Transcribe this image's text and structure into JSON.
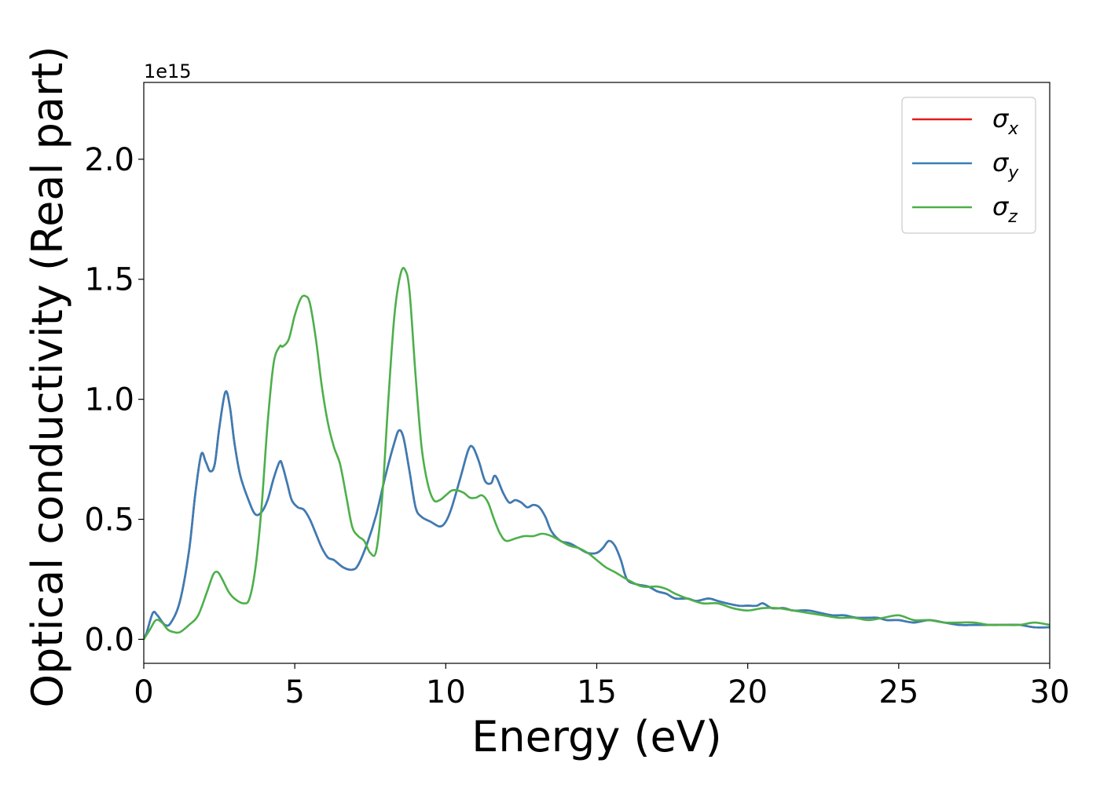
{
  "chart_data": {
    "type": "line",
    "xlabel": "Energy (eV)",
    "ylabel": "Optical conductivity (Real part)",
    "y_offset_text": "1e15",
    "y_multiplier": 1000000000000000.0,
    "xlim": [
      0,
      30
    ],
    "ylim": [
      -0.1,
      2.32
    ],
    "xticks": [
      0,
      5,
      10,
      15,
      20,
      25,
      30
    ],
    "xtick_labels": [
      "0",
      "5",
      "10",
      "15",
      "20",
      "25",
      "30"
    ],
    "yticks": [
      0.0,
      0.5,
      1.0,
      1.5,
      2.0
    ],
    "ytick_labels": [
      "0.0",
      "0.5",
      "1.0",
      "1.5",
      "2.0"
    ],
    "grid": false,
    "legend_position": "top-right",
    "legend": [
      {
        "symbol": "σ",
        "subscript": "x",
        "color": "#e41a1c"
      },
      {
        "symbol": "σ",
        "subscript": "y",
        "color": "#377eb8"
      },
      {
        "symbol": "σ",
        "subscript": "z",
        "color": "#4daf4a"
      }
    ],
    "series": [
      {
        "color": "#e41a1c",
        "x": [
          0,
          0.1,
          0.3,
          0.45,
          0.7,
          0.9,
          1.2,
          1.5,
          1.7,
          1.9,
          2.05,
          2.2,
          2.35,
          2.5,
          2.7,
          2.85,
          3.0,
          3.2,
          3.5,
          3.7,
          3.9,
          4.1,
          4.3,
          4.5,
          4.6,
          4.75,
          4.9,
          5.1,
          5.3,
          5.5,
          5.7,
          5.9,
          6.1,
          6.3,
          6.6,
          6.9,
          7.1,
          7.4,
          7.7,
          8.0,
          8.3,
          8.45,
          8.6,
          8.8,
          9.0,
          9.2,
          9.5,
          9.8,
          10.0,
          10.2,
          10.5,
          10.75,
          10.9,
          11.1,
          11.3,
          11.5,
          11.6,
          11.7,
          11.9,
          12.1,
          12.3,
          12.5,
          12.7,
          12.9,
          13.1,
          13.3,
          13.5,
          13.8,
          14.1,
          14.4,
          14.7,
          15.0,
          15.2,
          15.4,
          15.6,
          15.8,
          16.0,
          16.3,
          16.7,
          17.0,
          17.3,
          17.6,
          18.0,
          18.3,
          18.7,
          19.0,
          19.3,
          19.7,
          20.0,
          20.3,
          20.5,
          20.8,
          21.2,
          21.5,
          22.0,
          22.4,
          22.8,
          23.2,
          23.6,
          24.0,
          24.3,
          24.6,
          25.0,
          25.5,
          26.0,
          26.5,
          27.0,
          27.5,
          28.0,
          28.5,
          29.0,
          29.5,
          30.0
        ],
        "y": [
          0.0,
          0.03,
          0.11,
          0.1,
          0.06,
          0.07,
          0.16,
          0.37,
          0.6,
          0.77,
          0.74,
          0.7,
          0.73,
          0.88,
          1.03,
          0.97,
          0.82,
          0.68,
          0.57,
          0.52,
          0.53,
          0.58,
          0.67,
          0.74,
          0.72,
          0.65,
          0.58,
          0.55,
          0.54,
          0.5,
          0.44,
          0.38,
          0.34,
          0.33,
          0.3,
          0.29,
          0.31,
          0.4,
          0.52,
          0.68,
          0.82,
          0.87,
          0.84,
          0.7,
          0.55,
          0.51,
          0.49,
          0.47,
          0.49,
          0.55,
          0.68,
          0.79,
          0.8,
          0.74,
          0.66,
          0.65,
          0.68,
          0.67,
          0.61,
          0.57,
          0.58,
          0.57,
          0.55,
          0.56,
          0.55,
          0.51,
          0.45,
          0.41,
          0.4,
          0.38,
          0.36,
          0.36,
          0.38,
          0.41,
          0.39,
          0.33,
          0.25,
          0.23,
          0.22,
          0.2,
          0.19,
          0.17,
          0.17,
          0.16,
          0.17,
          0.16,
          0.15,
          0.14,
          0.14,
          0.14,
          0.15,
          0.13,
          0.13,
          0.12,
          0.12,
          0.11,
          0.1,
          0.1,
          0.09,
          0.09,
          0.09,
          0.08,
          0.08,
          0.07,
          0.08,
          0.07,
          0.06,
          0.06,
          0.06,
          0.06,
          0.06,
          0.05,
          0.05
        ]
      },
      {
        "color": "#377eb8",
        "x": [
          0,
          0.1,
          0.3,
          0.45,
          0.7,
          0.9,
          1.2,
          1.5,
          1.7,
          1.9,
          2.05,
          2.2,
          2.35,
          2.5,
          2.7,
          2.85,
          3.0,
          3.2,
          3.5,
          3.7,
          3.9,
          4.1,
          4.3,
          4.5,
          4.6,
          4.75,
          4.9,
          5.1,
          5.3,
          5.5,
          5.7,
          5.9,
          6.1,
          6.3,
          6.6,
          6.9,
          7.1,
          7.4,
          7.7,
          8.0,
          8.3,
          8.45,
          8.6,
          8.8,
          9.0,
          9.2,
          9.5,
          9.8,
          10.0,
          10.2,
          10.5,
          10.75,
          10.9,
          11.1,
          11.3,
          11.5,
          11.6,
          11.7,
          11.9,
          12.1,
          12.3,
          12.5,
          12.7,
          12.9,
          13.1,
          13.3,
          13.5,
          13.8,
          14.1,
          14.4,
          14.7,
          15.0,
          15.2,
          15.4,
          15.6,
          15.8,
          16.0,
          16.3,
          16.7,
          17.0,
          17.3,
          17.6,
          18.0,
          18.3,
          18.7,
          19.0,
          19.3,
          19.7,
          20.0,
          20.3,
          20.5,
          20.8,
          21.2,
          21.5,
          22.0,
          22.4,
          22.8,
          23.2,
          23.6,
          24.0,
          24.3,
          24.6,
          25.0,
          25.5,
          26.0,
          26.5,
          27.0,
          27.5,
          28.0,
          28.5,
          29.0,
          29.5,
          30.0
        ],
        "y": [
          0.0,
          0.03,
          0.11,
          0.1,
          0.06,
          0.07,
          0.16,
          0.37,
          0.6,
          0.77,
          0.74,
          0.7,
          0.73,
          0.88,
          1.03,
          0.97,
          0.82,
          0.68,
          0.57,
          0.52,
          0.53,
          0.58,
          0.67,
          0.74,
          0.72,
          0.65,
          0.58,
          0.55,
          0.54,
          0.5,
          0.44,
          0.38,
          0.34,
          0.33,
          0.3,
          0.29,
          0.31,
          0.4,
          0.52,
          0.68,
          0.82,
          0.87,
          0.84,
          0.7,
          0.55,
          0.51,
          0.49,
          0.47,
          0.49,
          0.55,
          0.68,
          0.79,
          0.8,
          0.74,
          0.66,
          0.65,
          0.68,
          0.67,
          0.61,
          0.57,
          0.58,
          0.57,
          0.55,
          0.56,
          0.55,
          0.51,
          0.45,
          0.41,
          0.4,
          0.38,
          0.36,
          0.36,
          0.38,
          0.41,
          0.39,
          0.33,
          0.25,
          0.23,
          0.22,
          0.2,
          0.19,
          0.17,
          0.17,
          0.16,
          0.17,
          0.16,
          0.15,
          0.14,
          0.14,
          0.14,
          0.15,
          0.13,
          0.13,
          0.12,
          0.12,
          0.11,
          0.1,
          0.1,
          0.09,
          0.09,
          0.09,
          0.08,
          0.08,
          0.07,
          0.08,
          0.07,
          0.06,
          0.06,
          0.06,
          0.06,
          0.06,
          0.05,
          0.05
        ]
      },
      {
        "color": "#4daf4a",
        "x": [
          0,
          0.2,
          0.4,
          0.6,
          0.8,
          1.0,
          1.2,
          1.5,
          1.8,
          2.1,
          2.3,
          2.45,
          2.6,
          2.8,
          3.0,
          3.3,
          3.5,
          3.7,
          3.9,
          4.1,
          4.3,
          4.5,
          4.6,
          4.8,
          5.0,
          5.2,
          5.35,
          5.5,
          5.7,
          5.9,
          6.1,
          6.3,
          6.5,
          6.7,
          6.9,
          7.1,
          7.3,
          7.5,
          7.7,
          7.9,
          8.1,
          8.3,
          8.5,
          8.65,
          8.8,
          9.0,
          9.2,
          9.4,
          9.6,
          9.8,
          10.0,
          10.2,
          10.4,
          10.6,
          10.8,
          11.0,
          11.2,
          11.4,
          11.6,
          11.8,
          12.0,
          12.3,
          12.6,
          12.9,
          13.2,
          13.5,
          13.8,
          14.1,
          14.4,
          14.7,
          15.0,
          15.3,
          15.6,
          16.0,
          16.5,
          17.0,
          17.3,
          17.6,
          18.0,
          18.5,
          19.0,
          19.5,
          20.0,
          20.5,
          21.0,
          21.5,
          22.0,
          22.5,
          23.0,
          23.5,
          24.0,
          24.5,
          25.0,
          25.5,
          26.0,
          26.5,
          27.0,
          27.5,
          28.0,
          28.5,
          29.0,
          29.5,
          30.0
        ],
        "y": [
          0.0,
          0.04,
          0.08,
          0.07,
          0.04,
          0.03,
          0.03,
          0.06,
          0.1,
          0.2,
          0.27,
          0.28,
          0.25,
          0.2,
          0.17,
          0.15,
          0.17,
          0.3,
          0.55,
          0.9,
          1.15,
          1.22,
          1.22,
          1.25,
          1.35,
          1.42,
          1.43,
          1.4,
          1.25,
          1.05,
          0.9,
          0.8,
          0.73,
          0.6,
          0.47,
          0.43,
          0.41,
          0.36,
          0.37,
          0.6,
          1.0,
          1.35,
          1.52,
          1.54,
          1.45,
          1.1,
          0.8,
          0.65,
          0.58,
          0.58,
          0.6,
          0.62,
          0.62,
          0.61,
          0.59,
          0.59,
          0.6,
          0.57,
          0.5,
          0.44,
          0.41,
          0.42,
          0.43,
          0.43,
          0.44,
          0.43,
          0.41,
          0.39,
          0.38,
          0.36,
          0.33,
          0.3,
          0.28,
          0.25,
          0.22,
          0.22,
          0.21,
          0.19,
          0.17,
          0.15,
          0.15,
          0.13,
          0.12,
          0.13,
          0.13,
          0.12,
          0.11,
          0.1,
          0.09,
          0.09,
          0.08,
          0.09,
          0.1,
          0.08,
          0.08,
          0.07,
          0.07,
          0.07,
          0.06,
          0.06,
          0.06,
          0.07,
          0.06
        ]
      }
    ]
  }
}
